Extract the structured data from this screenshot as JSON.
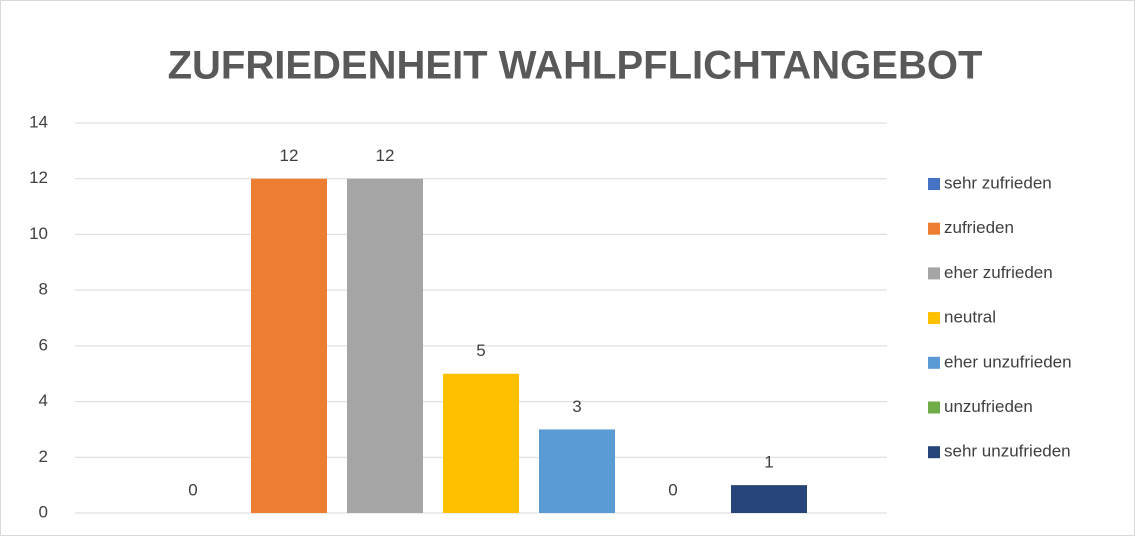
{
  "chart_data": {
    "type": "bar",
    "title": "ZUFRIEDENHEIT WAHLPFLICHTANGEBOT",
    "categories": [
      null
    ],
    "series": [
      {
        "name": "sehr zufrieden",
        "color": "#4472c4",
        "values": [
          0
        ]
      },
      {
        "name": "zufrieden",
        "color": "#ed7d31",
        "values": [
          12
        ]
      },
      {
        "name": "eher zufrieden",
        "color": "#a5a5a5",
        "values": [
          12
        ]
      },
      {
        "name": "neutral",
        "color": "#ffc000",
        "values": [
          5
        ]
      },
      {
        "name": "eher unzufrieden",
        "color": "#5b9bd5",
        "values": [
          3
        ]
      },
      {
        "name": "unzufrieden",
        "color": "#70ad47",
        "values": [
          0
        ]
      },
      {
        "name": "sehr unzufrieden",
        "color": "#264478",
        "values": [
          1
        ]
      }
    ],
    "ylim": [
      0,
      14
    ],
    "yticks": [
      0,
      2,
      4,
      6,
      8,
      10,
      12,
      14
    ],
    "grid": true,
    "legend": "right"
  }
}
